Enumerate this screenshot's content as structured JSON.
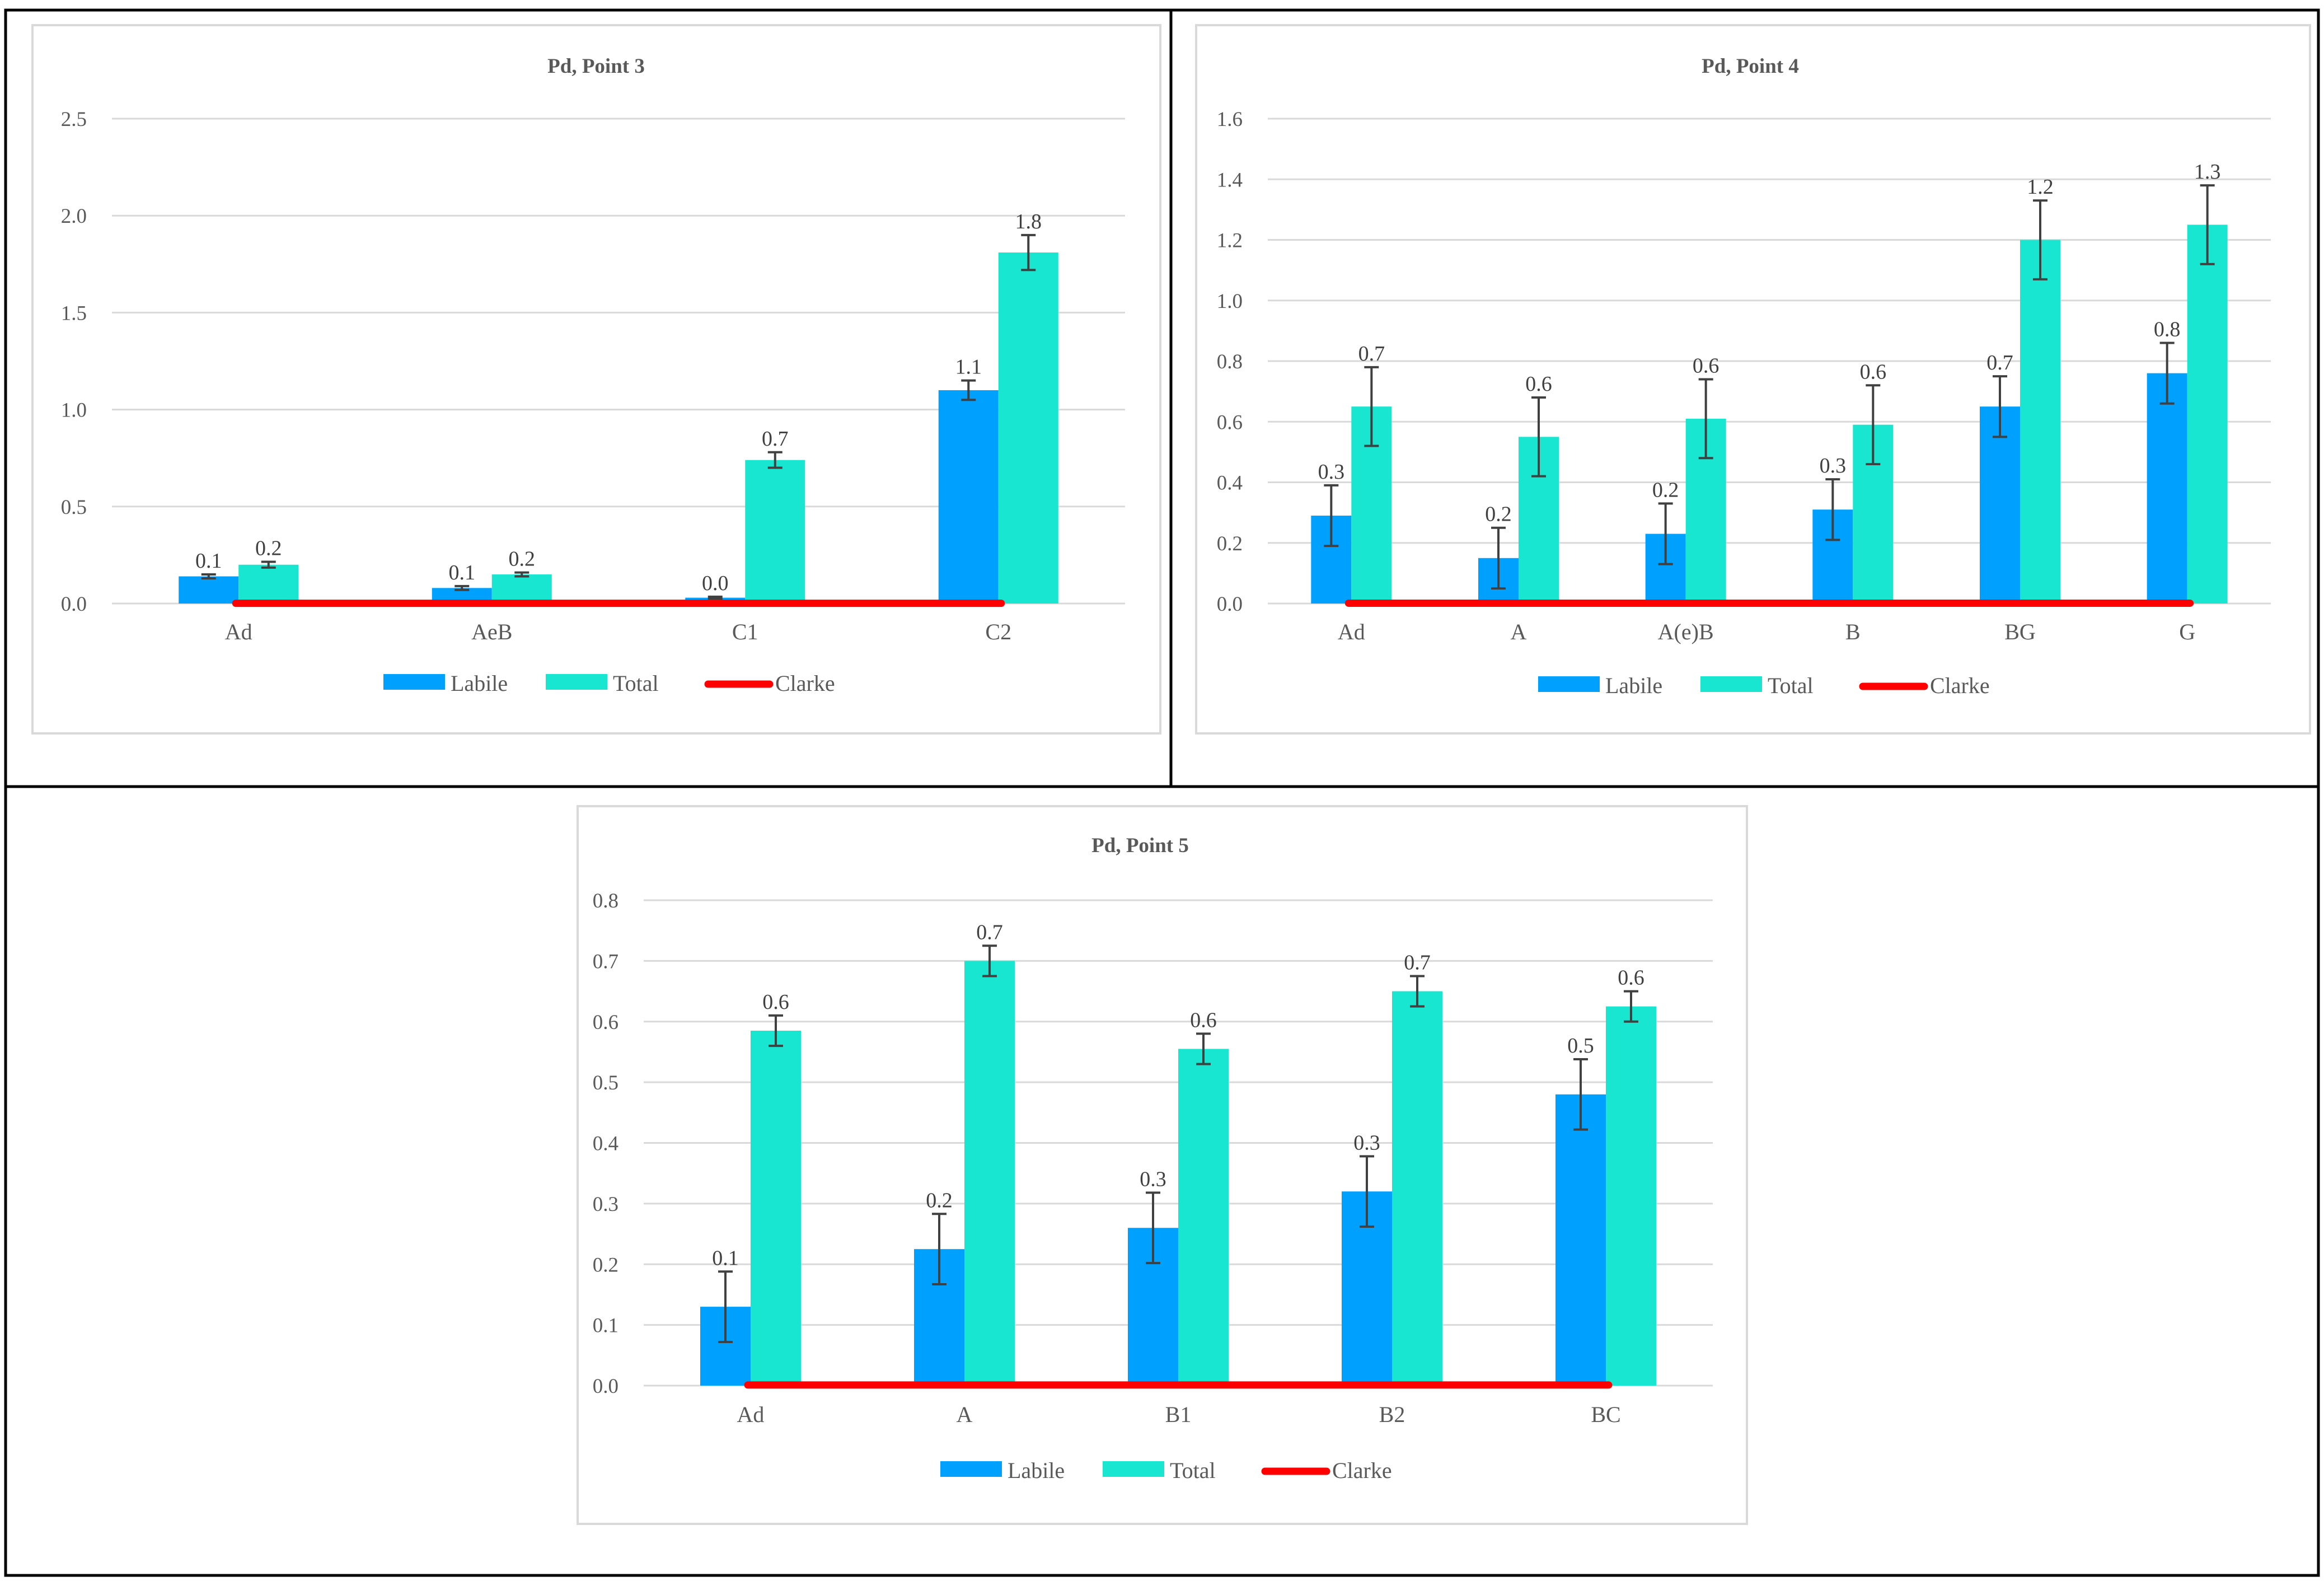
{
  "chart_data": [
    {
      "type": "bar",
      "title": "Pd, Point 3",
      "categories": [
        "Ad",
        "AeB",
        "C1",
        "C2"
      ],
      "ylim": [
        0,
        2.5
      ],
      "yticks": [
        "0.0",
        "0.5",
        "1.0",
        "1.5",
        "2.0",
        "2.5"
      ],
      "ytick_values": [
        0,
        0.5,
        1.0,
        1.5,
        2.0,
        2.5
      ],
      "series": [
        {
          "name": "Labile",
          "color": "#00a0ff",
          "values": [
            0.14,
            0.08,
            0.03,
            1.1
          ],
          "errors": [
            0.01,
            0.01,
            0.005,
            0.05
          ],
          "labels": [
            "0.1",
            "0.1",
            "0.0",
            "1.1"
          ]
        },
        {
          "name": "Total",
          "color": "#19e6d0",
          "values": [
            0.2,
            0.15,
            0.74,
            1.81
          ],
          "errors": [
            0.015,
            0.01,
            0.04,
            0.09
          ],
          "labels": [
            "0.2",
            "0.2",
            "0.7",
            "1.8"
          ]
        },
        {
          "name": "Clarke",
          "color": "#ff0000",
          "type": "line",
          "values": [
            0.001,
            0.001,
            0.001,
            0.001
          ]
        }
      ],
      "xlabel": "",
      "ylabel": "",
      "legend": "bottom"
    },
    {
      "type": "bar",
      "title": "Pd, Point 4",
      "categories": [
        "Ad",
        "A",
        "A(e)B",
        "B",
        "BG",
        "G"
      ],
      "ylim": [
        0,
        1.6
      ],
      "yticks": [
        "0.0",
        "0.2",
        "0.4",
        "0.6",
        "0.8",
        "1.0",
        "1.2",
        "1.4",
        "1.6"
      ],
      "ytick_values": [
        0,
        0.2,
        0.4,
        0.6,
        0.8,
        1.0,
        1.2,
        1.4,
        1.6
      ],
      "series": [
        {
          "name": "Labile",
          "color": "#00a0ff",
          "values": [
            0.29,
            0.15,
            0.23,
            0.31,
            0.65,
            0.76
          ],
          "errors": [
            0.1,
            0.1,
            0.1,
            0.1,
            0.1,
            0.1
          ],
          "labels": [
            "0.3",
            "0.2",
            "0.2",
            "0.3",
            "0.7",
            "0.8"
          ]
        },
        {
          "name": "Total",
          "color": "#19e6d0",
          "values": [
            0.65,
            0.55,
            0.61,
            0.59,
            1.2,
            1.25
          ],
          "errors": [
            0.13,
            0.13,
            0.13,
            0.13,
            0.13,
            0.13
          ],
          "labels": [
            "0.7",
            "0.6",
            "0.6",
            "0.6",
            "1.2",
            "1.3"
          ]
        },
        {
          "name": "Clarke",
          "color": "#ff0000",
          "type": "line",
          "values": [
            0.001,
            0.001,
            0.001,
            0.001,
            0.001,
            0.001
          ]
        }
      ],
      "xlabel": "",
      "ylabel": "",
      "legend": "bottom"
    },
    {
      "type": "bar",
      "title": "Pd, Point 5",
      "categories": [
        "Ad",
        "A",
        "B1",
        "B2",
        "BC"
      ],
      "ylim": [
        0,
        0.8
      ],
      "yticks": [
        "0.0",
        "0.1",
        "0.2",
        "0.3",
        "0.4",
        "0.5",
        "0.6",
        "0.7",
        "0.8"
      ],
      "ytick_values": [
        0,
        0.1,
        0.2,
        0.3,
        0.4,
        0.5,
        0.6,
        0.7,
        0.8
      ],
      "series": [
        {
          "name": "Labile",
          "color": "#00a0ff",
          "values": [
            0.13,
            0.225,
            0.26,
            0.32,
            0.48
          ],
          "errors": [
            0.058,
            0.058,
            0.058,
            0.058,
            0.058
          ],
          "labels": [
            "0.1",
            "0.2",
            "0.3",
            "0.3",
            "0.5"
          ]
        },
        {
          "name": "Total",
          "color": "#19e6d0",
          "values": [
            0.585,
            0.7,
            0.555,
            0.65,
            0.625
          ],
          "errors": [
            0.025,
            0.025,
            0.025,
            0.025,
            0.025
          ],
          "labels": [
            "0.6",
            "0.7",
            "0.6",
            "0.7",
            "0.6"
          ]
        },
        {
          "name": "Clarke",
          "color": "#ff0000",
          "type": "line",
          "values": [
            0.001,
            0.001,
            0.001,
            0.001,
            0.001
          ]
        }
      ],
      "xlabel": "",
      "ylabel": "",
      "legend": "bottom"
    }
  ]
}
